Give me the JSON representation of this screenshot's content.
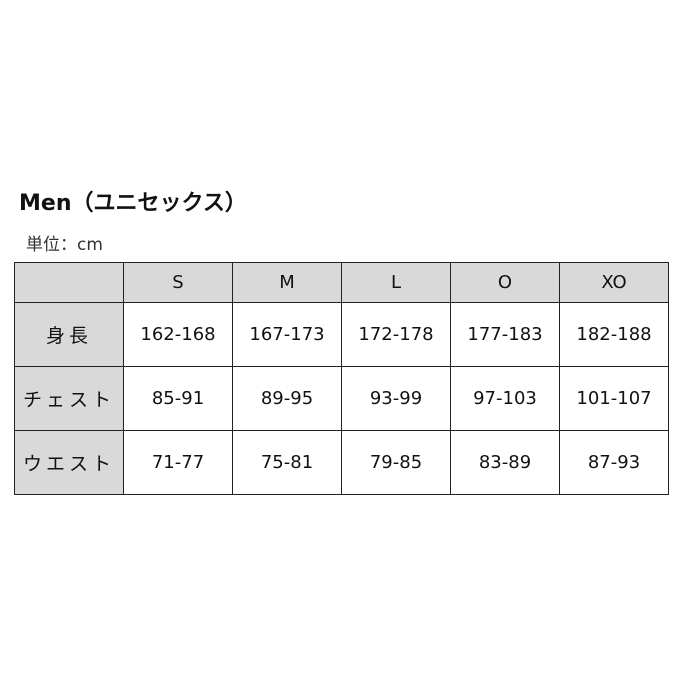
{
  "title": "Men（ユニセックス）",
  "unit": "単位：cm",
  "table": {
    "headers": [
      "",
      "S",
      "M",
      "L",
      "O",
      "XO"
    ],
    "rows": [
      {
        "label": "身長",
        "values": [
          "162-168",
          "167-173",
          "172-178",
          "177-183",
          "182-188"
        ]
      },
      {
        "label": "チェスト",
        "values": [
          "85-91",
          "89-95",
          "93-99",
          "97-103",
          "101-107"
        ]
      },
      {
        "label": "ウエスト",
        "values": [
          "71-77",
          "75-81",
          "79-85",
          "83-89",
          "87-93"
        ]
      }
    ]
  }
}
